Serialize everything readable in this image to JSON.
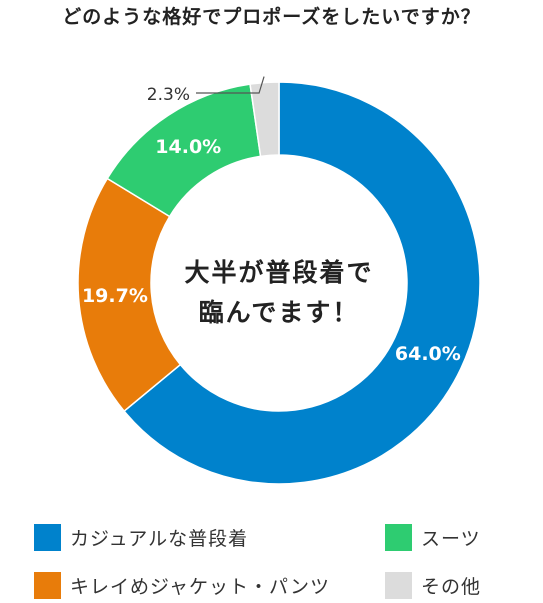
{
  "title": "どのような格好でプロポーズをしたいですか？",
  "chart_data": {
    "type": "pie",
    "variant": "donut",
    "title": "どのような格好でプロポーズをしたいですか？",
    "center_text": [
      "大半が普段着で",
      "臨んでます！"
    ],
    "slices": [
      {
        "label": "カジュアルな普段着",
        "value": 64.0,
        "value_label": "64.0%",
        "color": "#0082cc"
      },
      {
        "label": "キレイめジャケット・パンツ",
        "value": 19.7,
        "value_label": "19.7%",
        "color": "#e87c0a"
      },
      {
        "label": "スーツ",
        "value": 14.0,
        "value_label": "14.0%",
        "color": "#2ecc71"
      },
      {
        "label": "その他",
        "value": 2.3,
        "value_label": "2.3%",
        "color": "#dcdcdc"
      }
    ],
    "legend_position": "bottom"
  }
}
